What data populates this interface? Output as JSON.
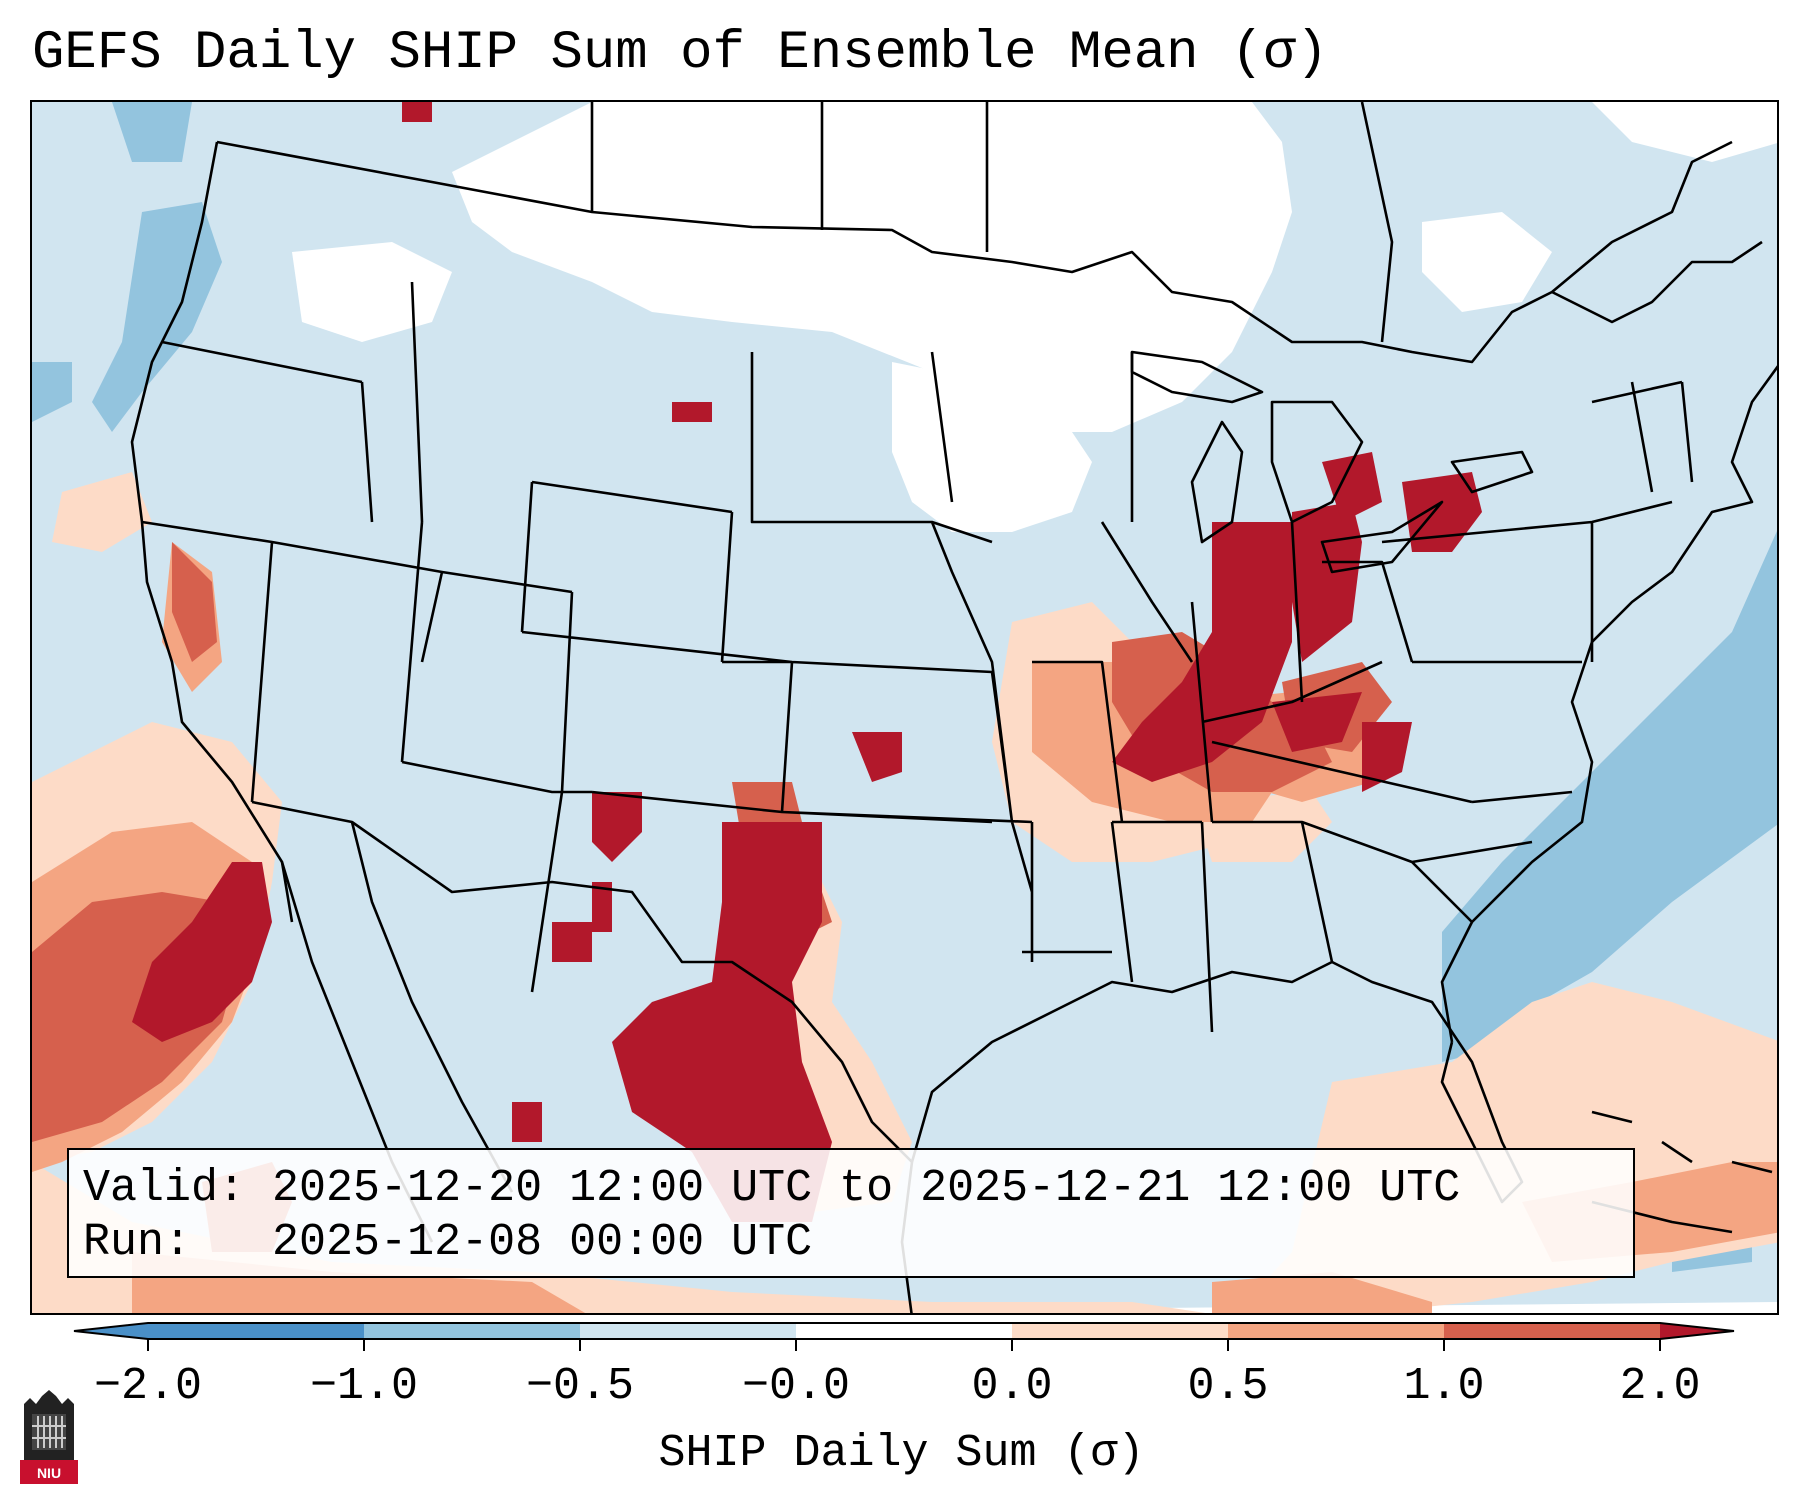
{
  "title": "GEFS Daily SHIP Sum of Ensemble Mean (σ)",
  "info": {
    "valid_label": "Valid:",
    "valid_value": "2025-12-20 12:00 UTC to 2025-12-21 12:00 UTC",
    "run_label": "Run:",
    "run_value": "2025-12-08 00:00 UTC"
  },
  "colorbar": {
    "label": "SHIP Daily Sum (σ)",
    "ticks": [
      "−2.0",
      "−1.0",
      "−0.5",
      "−0.0",
      "0.0",
      "0.5",
      "1.0",
      "2.0"
    ],
    "colors": [
      "#4a90c8",
      "#93c4de",
      "#d1e5f0",
      "#ffffff",
      "#fddbc7",
      "#f4a582",
      "#d6604d",
      "#b2182b"
    ]
  },
  "logo": {
    "text": "NIU",
    "name": "niu-logo-icon"
  },
  "map": {
    "projection": "lambert-conformal",
    "region": "CONUS",
    "legend_colors": {
      "neg_strong": "#4a90c8",
      "neg_mod": "#93c4de",
      "neg_weak": "#d1e5f0",
      "neutral": "#ffffff",
      "pos_weak": "#fddbc7",
      "pos_mod": "#f4a582",
      "pos_high": "#d6604d",
      "pos_strong": "#b2182b"
    }
  }
}
